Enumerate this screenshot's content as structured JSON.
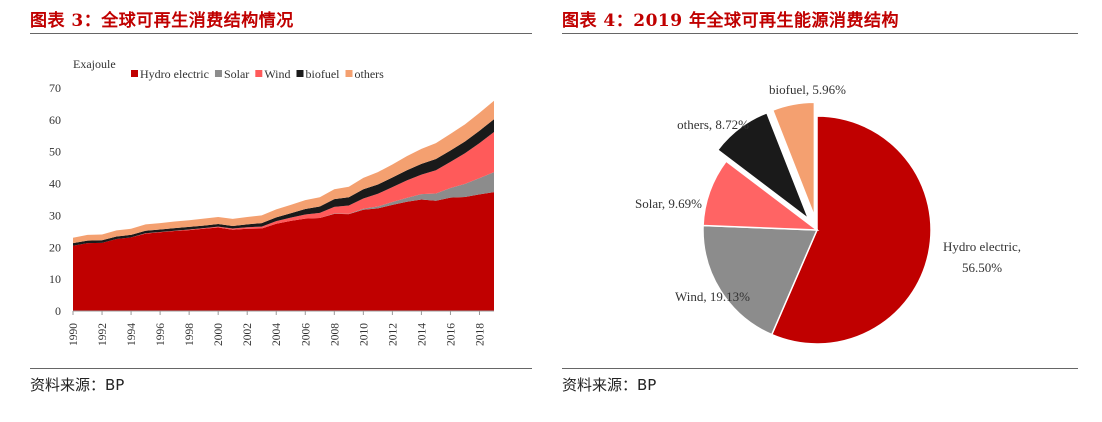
{
  "figures": [
    {
      "title": "图表 3：全球可再生消费结构情况",
      "source": "资料来源：BP"
    },
    {
      "title": "图表 4：2019 年全球可再生能源消费结构",
      "source": "资料来源：BP"
    }
  ],
  "chart_data": [
    {
      "type": "area",
      "stacked": true,
      "ylabel": "Exajoule",
      "ylim": [
        0,
        70
      ],
      "yticks": [
        0,
        10,
        20,
        30,
        40,
        50,
        60,
        70
      ],
      "x": [
        1990,
        1991,
        1992,
        1993,
        1994,
        1995,
        1996,
        1997,
        1998,
        1999,
        2000,
        2001,
        2002,
        2003,
        2004,
        2005,
        2006,
        2007,
        2008,
        2009,
        2010,
        2011,
        2012,
        2013,
        2014,
        2015,
        2016,
        2017,
        2018,
        2019
      ],
      "xticks": [
        1990,
        1992,
        1994,
        1996,
        1998,
        2000,
        2002,
        2004,
        2006,
        2008,
        2010,
        2012,
        2014,
        2016,
        2018
      ],
      "legend_position": "top",
      "grid": false,
      "series": [
        {
          "name": "Hydro electric",
          "color": "#c00000",
          "values": [
            20.5,
            21.3,
            21.4,
            22.6,
            23.1,
            24.3,
            24.7,
            25.1,
            25.4,
            25.8,
            26.2,
            25.5,
            25.8,
            25.9,
            27.4,
            28.3,
            29.0,
            29.2,
            30.5,
            30.4,
            31.8,
            32.2,
            33.3,
            34.3,
            35.0,
            34.6,
            35.6,
            35.8,
            36.6,
            37.3
          ]
        },
        {
          "name": "Solar",
          "color": "#8c8c8c",
          "values": [
            0,
            0,
            0,
            0,
            0,
            0,
            0,
            0,
            0,
            0,
            0,
            0,
            0,
            0,
            0,
            0,
            0,
            0,
            0.1,
            0.1,
            0.3,
            0.6,
            0.9,
            1.2,
            1.7,
            2.3,
            3.0,
            4.1,
            5.1,
            6.3
          ]
        },
        {
          "name": "Wind",
          "color": "#ff5a5a",
          "values": [
            0,
            0,
            0,
            0,
            0,
            0.1,
            0.1,
            0.1,
            0.2,
            0.2,
            0.3,
            0.4,
            0.5,
            0.6,
            0.8,
            1.0,
            1.3,
            1.6,
            2.1,
            2.6,
            3.2,
            4.0,
            4.7,
            5.5,
            6.1,
            7.3,
            8.2,
            9.6,
            11.0,
            12.6
          ]
        },
        {
          "name": "biofuel",
          "color": "#1a1a1a",
          "values": [
            0.8,
            0.8,
            0.8,
            0.8,
            0.8,
            0.8,
            0.8,
            0.8,
            0.8,
            0.8,
            0.8,
            0.8,
            0.9,
            1.1,
            1.2,
            1.4,
            1.7,
            2.0,
            2.4,
            2.6,
            2.9,
            2.9,
            3.0,
            3.2,
            3.4,
            3.5,
            3.6,
            3.7,
            3.9,
            4.0
          ]
        },
        {
          "name": "others",
          "color": "#f4a070",
          "values": [
            1.7,
            1.8,
            1.8,
            1.9,
            1.9,
            2.0,
            2.0,
            2.1,
            2.1,
            2.2,
            2.2,
            2.2,
            2.3,
            2.4,
            2.5,
            2.6,
            2.8,
            2.9,
            3.1,
            3.3,
            3.6,
            3.9,
            4.1,
            4.4,
            4.7,
            5.0,
            5.2,
            5.4,
            5.6,
            5.8
          ]
        }
      ]
    },
    {
      "type": "pie",
      "exploded": [
        "biofuel",
        "others"
      ],
      "slices": [
        {
          "name": "Hydro electric",
          "value": 56.5,
          "label_lines": [
            "Hydro electric,",
            "56.50%"
          ],
          "color": "#c00000"
        },
        {
          "name": "Wind",
          "value": 19.13,
          "label_lines": [
            "Wind, 19.13%"
          ],
          "color": "#8c8c8c"
        },
        {
          "name": "Solar",
          "value": 9.69,
          "label_lines": [
            "Solar, 9.69%"
          ],
          "color": "#ff6464"
        },
        {
          "name": "others",
          "value": 8.72,
          "label_lines": [
            "others, 8.72%"
          ],
          "color": "#1a1a1a"
        },
        {
          "name": "biofuel",
          "value": 5.96,
          "label_lines": [
            "biofuel, 5.96%"
          ],
          "color": "#f4a070"
        }
      ]
    }
  ]
}
